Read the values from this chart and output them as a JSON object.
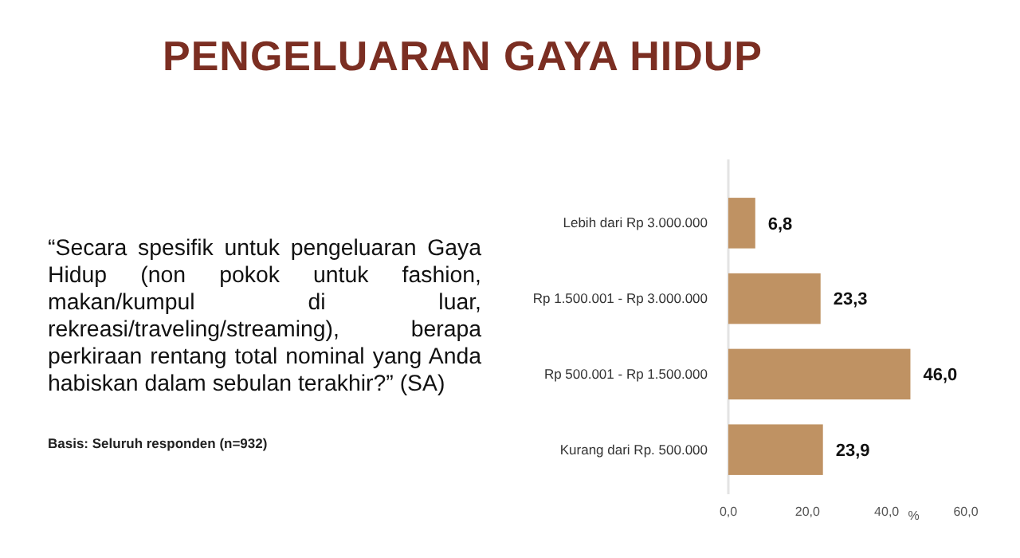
{
  "chart_data": {
    "type": "bar",
    "orientation": "horizontal",
    "title": "PENGELUARAN GAYA HIDUP",
    "categories": [
      "Lebih dari Rp 3.000.000",
      "Rp 1.500.001 - Rp 3.000.000",
      "Rp 500.001 - Rp 1.500.000",
      "Kurang dari Rp. 500.000"
    ],
    "values": [
      6.8,
      23.3,
      46.0,
      23.9
    ],
    "color": "#bf9263",
    "value_labels": [
      "6,8",
      "23,3",
      "46,0",
      "23,9"
    ],
    "xlim": [
      0,
      60
    ],
    "xticks": [
      {
        "value": 0,
        "label": "0,0"
      },
      {
        "value": 20,
        "label": "20,0"
      },
      {
        "value": 40,
        "label": "40,0"
      },
      {
        "value": 60,
        "label": "60,0"
      }
    ],
    "xlabel": "%",
    "annotations": [
      "“Secara spesifik untuk pengeluaran Gaya Hidup (non pokok untuk fashion, makan/kumpul di luar, rekreasi/traveling/streaming), berapa perkiraan rentang total nominal yang Anda habiskan dalam sebulan terakhir?” (SA)",
      "Basis: Seluruh responden (n=932)"
    ]
  }
}
